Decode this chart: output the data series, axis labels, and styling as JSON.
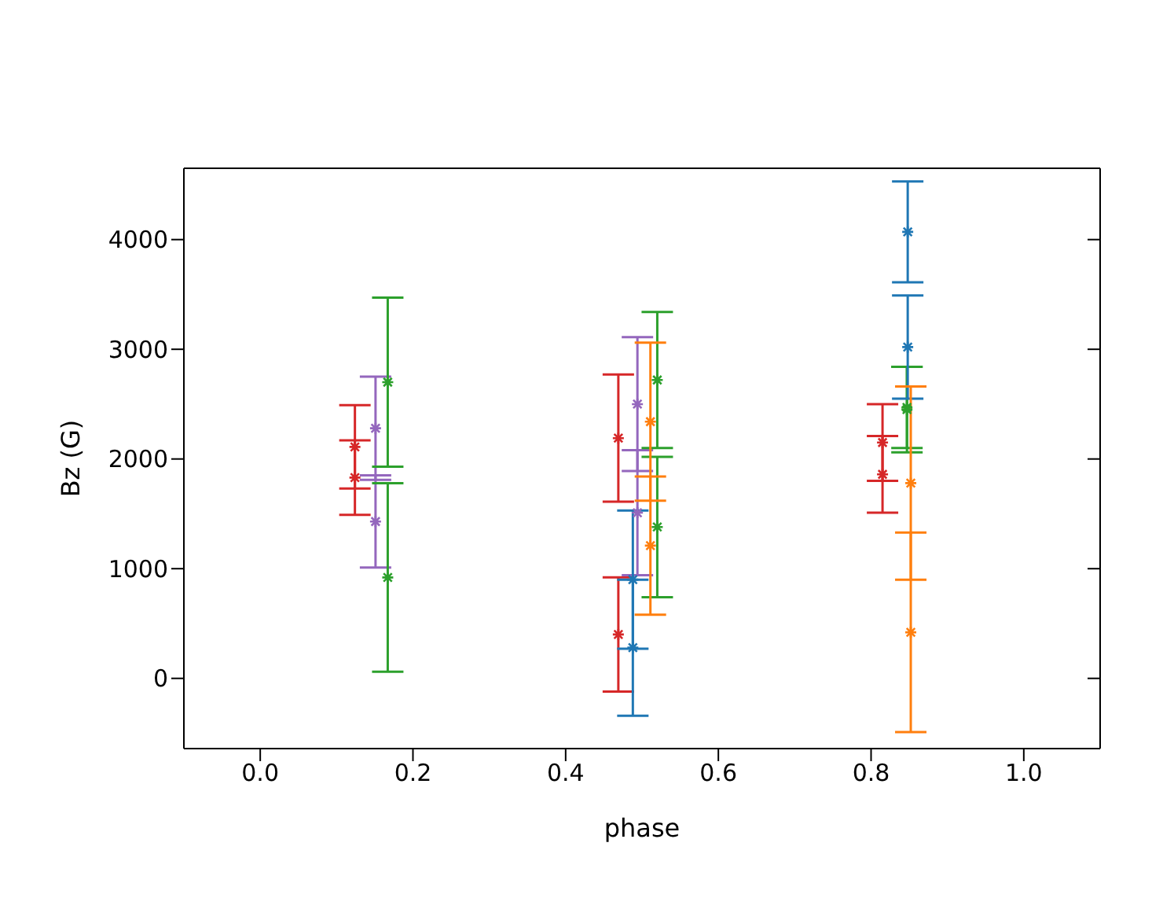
{
  "chart_data": {
    "type": "scatter",
    "xlabel": "phase",
    "ylabel": "Bz (G)",
    "xlim": [
      -0.1,
      1.1
    ],
    "xticks": [
      {
        "value": 0,
        "label": "0.0"
      },
      0.2,
      0.4,
      0.6,
      0.8,
      {
        "value": 1,
        "label": "1.0"
      }
    ],
    "ylim": [
      -640,
      4650
    ],
    "yticks": [
      0,
      1000,
      2000,
      3000,
      4000
    ],
    "marker": "cross",
    "series": [
      {
        "color": "#d62728",
        "x": [
          0.124,
          0.124,
          0.469,
          0.469,
          0.815,
          0.815
        ],
        "values": [
          2110,
          1830,
          2190,
          400,
          2150,
          1860
        ],
        "errors": [
          380,
          340,
          580,
          520,
          350,
          350
        ]
      },
      {
        "color": "#9467bd",
        "x": [
          0.151,
          0.151,
          0.494,
          0.494
        ],
        "values": [
          2280,
          1430,
          2500,
          1510
        ],
        "errors": [
          470,
          420,
          610,
          570
        ]
      },
      {
        "color": "#2ca02c",
        "x": [
          0.167,
          0.167,
          0.52,
          0.52,
          0.847,
          0.847
        ],
        "values": [
          2700,
          920,
          2720,
          1380,
          2470,
          2450
        ],
        "errors": [
          770,
          860,
          620,
          640,
          370,
          390
        ]
      },
      {
        "color": "#1f77b4",
        "x": [
          0.488,
          0.488,
          0.848,
          0.848
        ],
        "values": [
          900,
          280,
          4070,
          3020
        ],
        "errors": [
          630,
          620,
          460,
          470
        ]
      },
      {
        "color": "#ff7f0e",
        "x": [
          0.511,
          0.511,
          0.852,
          0.852
        ],
        "values": [
          2340,
          1210,
          1780,
          420
        ],
        "errors": [
          720,
          630,
          880,
          910
        ]
      }
    ]
  }
}
